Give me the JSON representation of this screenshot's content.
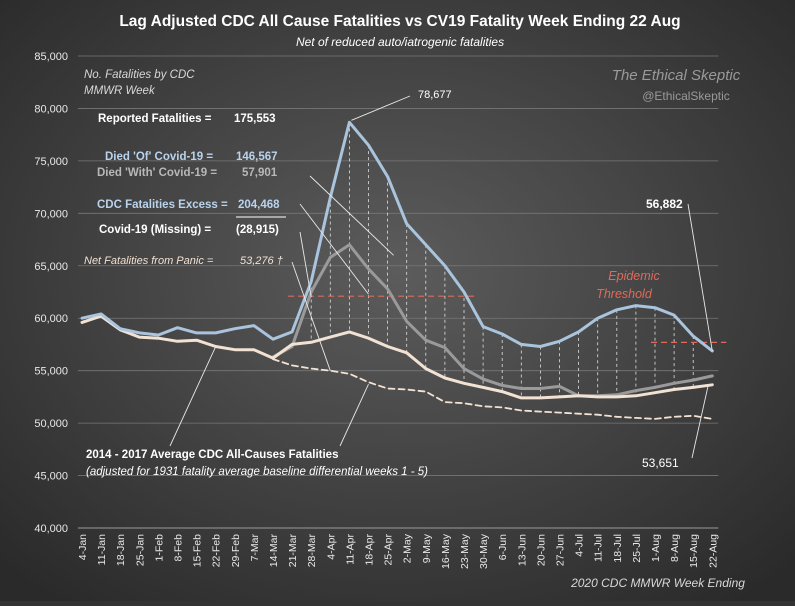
{
  "chart_data": {
    "type": "line",
    "title": "Lag Adjusted CDC All Cause Fatalities vs CV19 Fatality Week Ending 22 Aug",
    "subtitle": "Net of reduced auto/iatrogenic fatalities",
    "ylabel_lines": [
      "No. Fatalities by CDC",
      "MMWR Week"
    ],
    "xlabel": "2020 CDC MMWR Week Ending",
    "watermark": {
      "line1": "The Ethical Skeptic",
      "line2": "@EthicalSkeptic"
    },
    "ylim": [
      40000,
      85000
    ],
    "yticks": [
      40000,
      45000,
      50000,
      55000,
      60000,
      65000,
      70000,
      75000,
      80000,
      85000
    ],
    "ytick_labels": [
      "40,000",
      "45,000",
      "50,000",
      "55,000",
      "60,000",
      "65,000",
      "70,000",
      "75,000",
      "80,000",
      "85,000"
    ],
    "grid": "horizontal",
    "categories": [
      "4-Jan",
      "11-Jan",
      "18-Jan",
      "25-Jan",
      "1-Feb",
      "8-Feb",
      "15-Feb",
      "22-Feb",
      "29-Feb",
      "7-Mar",
      "14-Mar",
      "21-Mar",
      "28-Mar",
      "4-Apr",
      "11-Apr",
      "18-Apr",
      "25-Apr",
      "2-May",
      "9-May",
      "16-May",
      "23-May",
      "30-May",
      "6-Jun",
      "13-Jun",
      "20-Jun",
      "27-Jun",
      "4-Jul",
      "11-Jul",
      "18-Jul",
      "25-Jul",
      "1-Aug",
      "8-Aug",
      "15-Aug",
      "22-Aug"
    ],
    "series": [
      {
        "key": "all_cause",
        "color": "#a9c4dc",
        "values": [
          60000,
          60400,
          59000,
          58600,
          58400,
          59100,
          58600,
          58600,
          59000,
          59300,
          58000,
          58700,
          63500,
          71500,
          78677,
          76500,
          73500,
          69000,
          67000,
          65000,
          62500,
          59200,
          58500,
          57500,
          57300,
          57800,
          58700,
          60000,
          60800,
          61200,
          61000,
          60300,
          58300,
          56882
        ]
      },
      {
        "key": "covid_with",
        "color": "#9a9a9a",
        "values": [
          null,
          null,
          null,
          null,
          null,
          null,
          null,
          null,
          null,
          null,
          56300,
          57300,
          62500,
          65800,
          67000,
          64700,
          62800,
          59700,
          57900,
          57200,
          55200,
          54200,
          53600,
          53300,
          53300,
          53500,
          52600,
          52600,
          52700,
          53100,
          53400,
          53800,
          54100,
          54500
        ]
      },
      {
        "key": "net_panic",
        "color": "#f2e2d4",
        "values": [
          59600,
          60200,
          58900,
          58200,
          58100,
          57800,
          57900,
          57300,
          57000,
          57000,
          56200,
          57500,
          57700,
          58200,
          58700,
          58100,
          57300,
          56700,
          55200,
          54300,
          53800,
          53400,
          53000,
          52400,
          52400,
          52500,
          52600,
          52500,
          52500,
          52600,
          52900,
          53200,
          53400,
          53651
        ]
      },
      {
        "key": "baseline_2014_2017",
        "color": "#f2e2d4",
        "dashed": true,
        "values": [
          null,
          null,
          null,
          null,
          null,
          null,
          null,
          null,
          null,
          null,
          56100,
          55500,
          55200,
          55000,
          54700,
          53900,
          53300,
          53200,
          53000,
          52000,
          51900,
          51600,
          51500,
          51200,
          51100,
          51000,
          50900,
          50800,
          50600,
          50500,
          50400,
          50600,
          50700,
          50400
        ]
      }
    ],
    "epidemic_threshold": {
      "label_line1": "Epidemic",
      "label_line2": "Threshold",
      "segments": [
        {
          "x_from": "21-Mar",
          "x_to": "23-May",
          "y": 62100
        },
        {
          "x_from": "1-Aug",
          "x_to": "22-Aug",
          "y": 57700
        }
      ]
    },
    "annotations": {
      "peak_label": "78,677",
      "end_value_label": "56,882",
      "net_end_label": "53,651",
      "summary": {
        "reported_label": "Reported  Fatalities  =",
        "reported_value": "175,553",
        "died_of_label": "Died 'Of' Covid-19 =",
        "died_of_value": "146,567",
        "died_with_label": "Died 'With' Covid-19 =",
        "died_with_value": "57,901",
        "excess_label": "CDC Fatalities Excess =",
        "excess_value": "204,468",
        "missing_label": "Covid-19 (Missing)  =",
        "missing_value": "(28,915)",
        "panic_label": "Net Fatalities from Panic =",
        "panic_value": "53,276 †"
      },
      "baseline_note_line1": "2014 - 2017 Average CDC All-Causes Fatalities",
      "baseline_note_line2": "(adjusted for 1931 fatality average baseline differential weeks 1 - 5)"
    },
    "colors": {
      "background_center": "#5c5c5c",
      "background_edge": "#2a2a2a",
      "threshold": "#e06a5a",
      "text": "#ffffff",
      "died_of": "#b9d3ec",
      "axis_text": "#e8e8e8"
    }
  }
}
